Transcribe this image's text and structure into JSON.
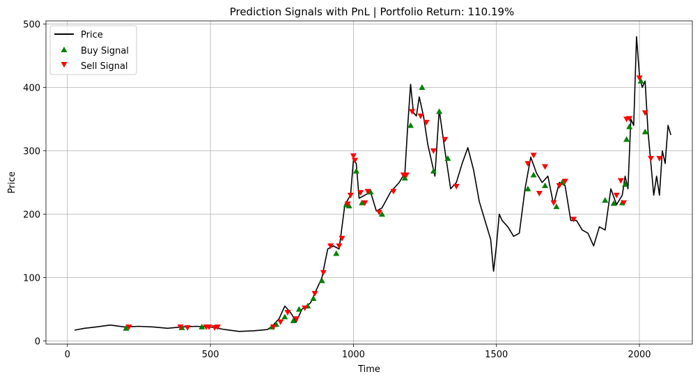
{
  "chart_data": {
    "type": "line",
    "title": "Prediction Signals with PnL | Portfolio Return: 110.19%",
    "xlabel": "Time",
    "ylabel": "Price",
    "xlim": [
      -75,
      2185
    ],
    "ylim": [
      -5,
      505
    ],
    "xticks": [
      0,
      500,
      1000,
      1500,
      2000
    ],
    "yticks": [
      0,
      100,
      200,
      300,
      400,
      500
    ],
    "grid": true,
    "legend_position": "top-left",
    "colors": {
      "price": "#000000",
      "buy": "#008000",
      "sell": "#ff0000",
      "grid": "#b0b0b0"
    },
    "series": [
      {
        "name": "Price",
        "type": "line",
        "x": [
          25,
          60,
          100,
          150,
          200,
          250,
          300,
          350,
          400,
          450,
          500,
          550,
          600,
          650,
          700,
          720,
          740,
          760,
          780,
          800,
          820,
          850,
          870,
          890,
          910,
          930,
          950,
          970,
          990,
          1000,
          1010,
          1020,
          1040,
          1060,
          1080,
          1100,
          1130,
          1160,
          1180,
          1190,
          1200,
          1210,
          1220,
          1230,
          1245,
          1260,
          1270,
          1285,
          1300,
          1320,
          1340,
          1360,
          1380,
          1400,
          1420,
          1440,
          1460,
          1480,
          1490,
          1500,
          1510,
          1520,
          1540,
          1560,
          1580,
          1600,
          1620,
          1640,
          1660,
          1680,
          1700,
          1720,
          1740,
          1760,
          1780,
          1800,
          1820,
          1840,
          1860,
          1880,
          1900,
          1920,
          1940,
          1950,
          1960,
          1970,
          1980,
          1990,
          2000,
          2010,
          2020,
          2030,
          2040,
          2050,
          2060,
          2070,
          2080,
          2090,
          2100,
          2110
        ],
        "y": [
          17,
          20,
          22,
          25,
          22,
          23,
          22,
          20,
          22,
          23,
          22,
          18,
          15,
          16,
          18,
          25,
          35,
          55,
          45,
          30,
          50,
          60,
          80,
          100,
          145,
          150,
          145,
          215,
          230,
          285,
          280,
          225,
          230,
          235,
          205,
          210,
          235,
          250,
          265,
          340,
          405,
          360,
          355,
          385,
          355,
          310,
          290,
          260,
          365,
          300,
          240,
          250,
          280,
          305,
          270,
          220,
          190,
          160,
          110,
          150,
          200,
          190,
          180,
          165,
          170,
          240,
          290,
          265,
          250,
          260,
          215,
          250,
          245,
          190,
          190,
          175,
          170,
          150,
          180,
          175,
          240,
          215,
          230,
          260,
          240,
          350,
          340,
          480,
          420,
          400,
          410,
          330,
          280,
          230,
          260,
          230,
          300,
          280,
          340,
          325
        ]
      },
      {
        "name": "Buy Signal",
        "type": "scatter",
        "marker": "triangle-up",
        "x": [
          205,
          400,
          470,
          715,
          730,
          760,
          790,
          810,
          840,
          860,
          890,
          940,
          975,
          985,
          1010,
          1030,
          1060,
          1100,
          1180,
          1200,
          1240,
          1280,
          1300,
          1330,
          1610,
          1630,
          1670,
          1710,
          1730,
          1880,
          1910,
          1940,
          1950,
          1955,
          1965,
          2005,
          2020
        ],
        "y": [
          20,
          21,
          22,
          22,
          26,
          38,
          32,
          50,
          55,
          67,
          95,
          138,
          215,
          213,
          268,
          218,
          235,
          200,
          257,
          340,
          400,
          268,
          362,
          288,
          240,
          262,
          245,
          212,
          250,
          222,
          217,
          218,
          247,
          318,
          338,
          410,
          330
        ]
      },
      {
        "name": "Sell Signal",
        "type": "scatter",
        "marker": "triangle-down",
        "x": [
          215,
          395,
          420,
          485,
          495,
          515,
          525,
          720,
          745,
          770,
          800,
          830,
          865,
          895,
          920,
          950,
          960,
          980,
          990,
          1000,
          1005,
          1025,
          1040,
          1050,
          1090,
          1140,
          1175,
          1185,
          1205,
          1235,
          1255,
          1280,
          1320,
          1360,
          1610,
          1630,
          1650,
          1670,
          1700,
          1720,
          1740,
          1770,
          1920,
          1935,
          1945,
          1955,
          1965,
          2000,
          2020,
          2040,
          2070
        ],
        "y": [
          22,
          22,
          21,
          22,
          22,
          21,
          22,
          22,
          30,
          45,
          35,
          52,
          75,
          108,
          150,
          150,
          162,
          216,
          230,
          292,
          285,
          234,
          218,
          236,
          203,
          236,
          262,
          262,
          362,
          355,
          345,
          300,
          318,
          244,
          280,
          293,
          233,
          275,
          218,
          245,
          252,
          192,
          230,
          253,
          218,
          350,
          351,
          415,
          360,
          288,
          288
        ]
      }
    ]
  }
}
